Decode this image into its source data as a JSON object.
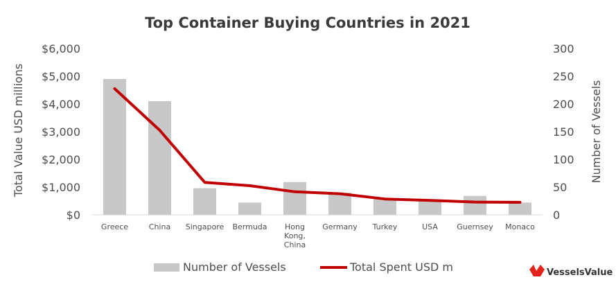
{
  "chart_data": {
    "type": "bar",
    "title": "Top Container Buying Countries in 2021",
    "categories": [
      [
        "Greece"
      ],
      [
        "China"
      ],
      [
        "Singapore"
      ],
      [
        "Bermuda"
      ],
      [
        "Hong",
        "Kong,",
        "China"
      ],
      [
        "Germany"
      ],
      [
        "Turkey"
      ],
      [
        "USA"
      ],
      [
        "Guernsey"
      ],
      [
        "Monaco"
      ]
    ],
    "y_left": {
      "label": "Total Value USD millions",
      "ticks": [
        "$0",
        "$1,000",
        "$2,000",
        "$3,000",
        "$4,000",
        "$5,000",
        "$6,000"
      ],
      "range": [
        0,
        6000
      ]
    },
    "y_right": {
      "label": "Number of Vessels",
      "ticks": [
        "0",
        "50",
        "100",
        "150",
        "200",
        "250",
        "300"
      ],
      "range": [
        0,
        300
      ]
    },
    "series": [
      {
        "name": "Number of Vessels",
        "kind": "bar",
        "axis": "right",
        "color": "#c8c8c8",
        "values": [
          245,
          205,
          48,
          22,
          59,
          40,
          30,
          27,
          34,
          22
        ]
      },
      {
        "name": "Total Spent USD m",
        "kind": "line",
        "axis": "left",
        "color": "#c00000",
        "values": [
          4550,
          3050,
          1170,
          1050,
          830,
          760,
          570,
          520,
          460,
          450
        ]
      }
    ],
    "legend_position": "bottom",
    "grid": false
  },
  "brand": {
    "name": "VesselsValue",
    "color": "#e2231a"
  }
}
